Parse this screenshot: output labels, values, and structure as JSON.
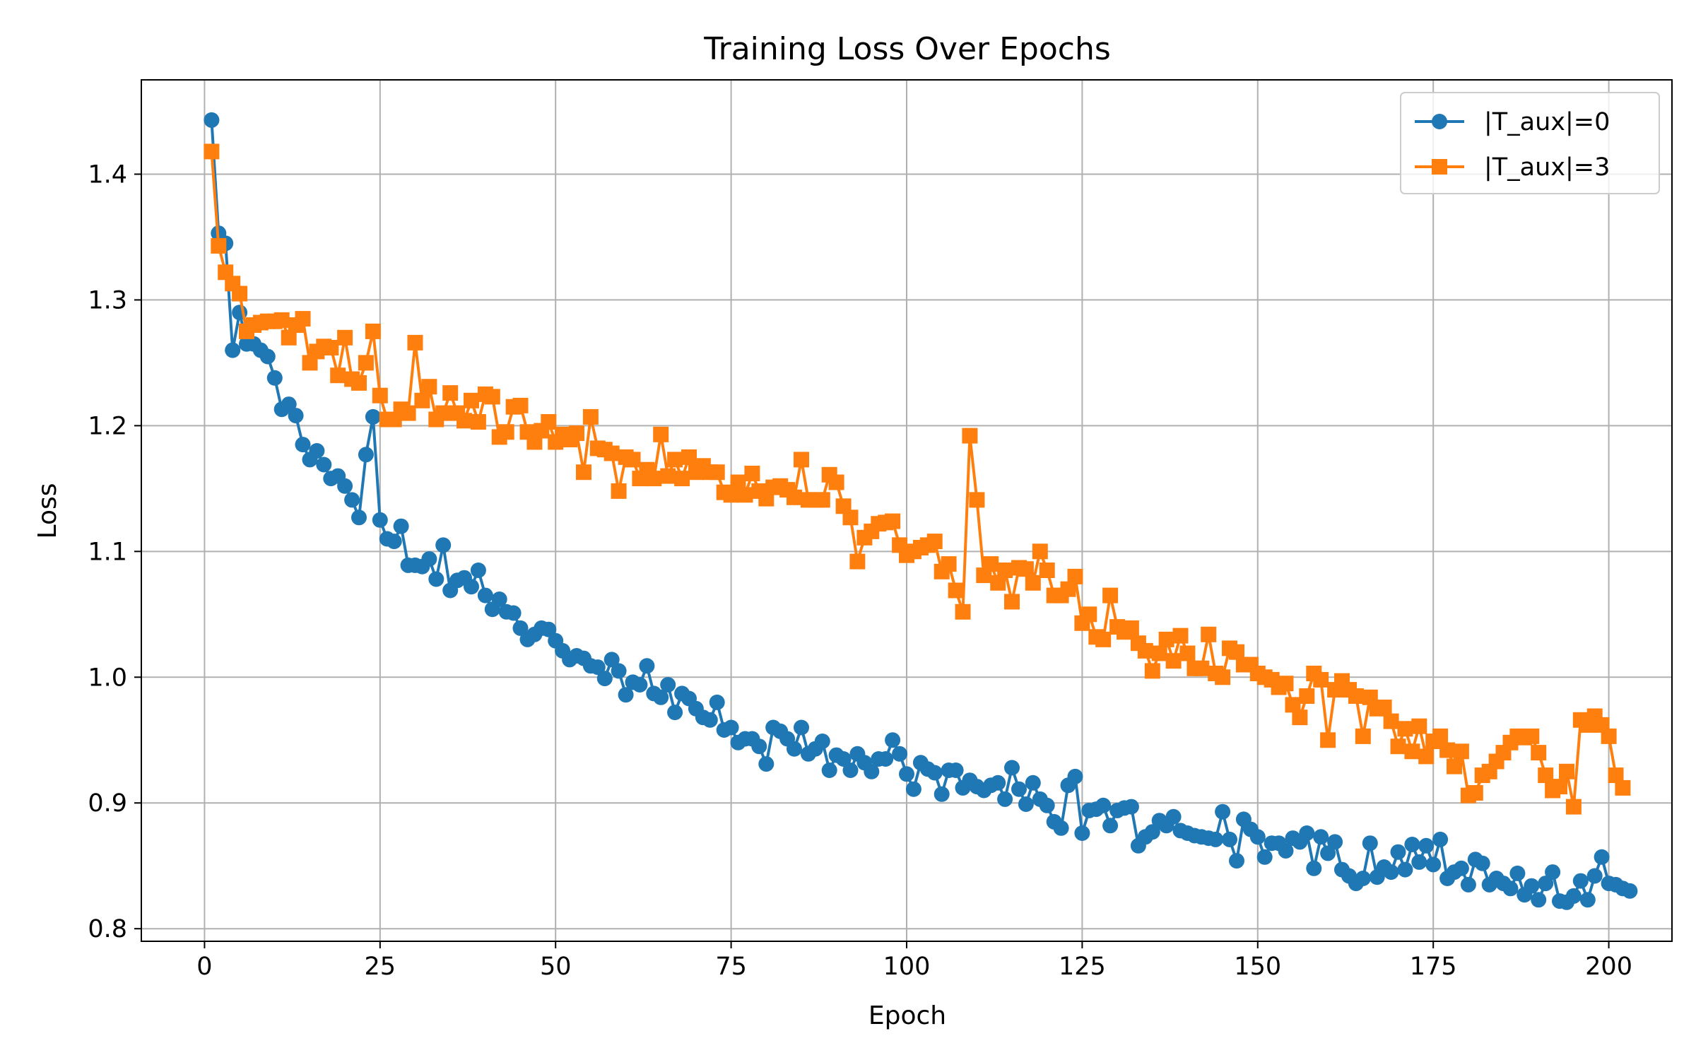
{
  "chart_data": {
    "type": "line",
    "title": "Training Loss Over Epochs",
    "xlabel": "Epoch",
    "ylabel": "Loss",
    "xlim": [
      -9,
      209
    ],
    "ylim": [
      0.79,
      1.475
    ],
    "xticks": [
      0,
      25,
      50,
      75,
      100,
      125,
      150,
      175,
      200
    ],
    "yticks": [
      0.8,
      0.9,
      1.0,
      1.1,
      1.2,
      1.3,
      1.4
    ],
    "ytick_labels": [
      "0.8",
      "0.9",
      "1.0",
      "1.1",
      "1.2",
      "1.3",
      "1.4"
    ],
    "grid": true,
    "legend_position": "top-right",
    "series": [
      {
        "name": "|T_aux|=0",
        "color": "#1f77b4",
        "marker": "circle",
        "x_start": 1,
        "values": [
          1.443,
          1.353,
          1.345,
          1.26,
          1.29,
          1.265,
          1.265,
          1.26,
          1.255,
          1.238,
          1.213,
          1.217,
          1.208,
          1.185,
          1.173,
          1.18,
          1.169,
          1.158,
          1.16,
          1.152,
          1.141,
          1.127,
          1.177,
          1.207,
          1.125,
          1.11,
          1.108,
          1.12,
          1.089,
          1.089,
          1.088,
          1.094,
          1.078,
          1.105,
          1.069,
          1.077,
          1.079,
          1.072,
          1.085,
          1.065,
          1.054,
          1.062,
          1.052,
          1.051,
          1.039,
          1.03,
          1.034,
          1.039,
          1.038,
          1.029,
          1.021,
          1.014,
          1.017,
          1.015,
          1.009,
          1.008,
          0.999,
          1.014,
          1.005,
          0.986,
          0.996,
          0.994,
          1.009,
          0.987,
          0.984,
          0.994,
          0.972,
          0.987,
          0.983,
          0.975,
          0.968,
          0.966,
          0.98,
          0.958,
          0.96,
          0.948,
          0.951,
          0.951,
          0.945,
          0.931,
          0.96,
          0.957,
          0.951,
          0.943,
          0.96,
          0.939,
          0.943,
          0.949,
          0.926,
          0.938,
          0.935,
          0.926,
          0.939,
          0.932,
          0.925,
          0.935,
          0.935,
          0.95,
          0.939,
          0.923,
          0.911,
          0.932,
          0.927,
          0.924,
          0.907,
          0.926,
          0.926,
          0.912,
          0.918,
          0.913,
          0.91,
          0.914,
          0.916,
          0.903,
          0.928,
          0.911,
          0.899,
          0.916,
          0.903,
          0.898,
          0.885,
          0.88,
          0.914,
          0.921,
          0.876,
          0.894,
          0.895,
          0.898,
          0.882,
          0.894,
          0.896,
          0.897,
          0.866,
          0.873,
          0.877,
          0.886,
          0.882,
          0.889,
          0.878,
          0.876,
          0.874,
          0.873,
          0.872,
          0.871,
          0.893,
          0.871,
          0.854,
          0.887,
          0.879,
          0.873,
          0.857,
          0.868,
          0.868,
          0.862,
          0.872,
          0.869,
          0.876,
          0.848,
          0.873,
          0.86,
          0.869,
          0.847,
          0.842,
          0.836,
          0.84,
          0.868,
          0.841,
          0.849,
          0.845,
          0.861,
          0.847,
          0.867,
          0.853,
          0.866,
          0.851,
          0.871,
          0.84,
          0.845,
          0.848,
          0.835,
          0.855,
          0.852,
          0.835,
          0.84,
          0.836,
          0.832,
          0.844,
          0.827,
          0.834,
          0.823,
          0.836,
          0.845,
          0.822,
          0.821,
          0.826,
          0.838,
          0.823,
          0.842,
          0.857,
          0.836,
          0.835,
          0.832,
          0.83
        ]
      },
      {
        "name": "|T_aux|=3",
        "color": "#ff7f0e",
        "marker": "square",
        "x_start": 1,
        "values": [
          1.418,
          1.343,
          1.322,
          1.313,
          1.305,
          1.275,
          1.28,
          1.282,
          1.283,
          1.283,
          1.284,
          1.27,
          1.28,
          1.285,
          1.25,
          1.259,
          1.263,
          1.262,
          1.24,
          1.27,
          1.237,
          1.234,
          1.25,
          1.275,
          1.224,
          1.205,
          1.205,
          1.213,
          1.21,
          1.266,
          1.22,
          1.231,
          1.205,
          1.21,
          1.226,
          1.21,
          1.204,
          1.22,
          1.203,
          1.225,
          1.223,
          1.191,
          1.195,
          1.215,
          1.216,
          1.195,
          1.187,
          1.196,
          1.203,
          1.187,
          1.193,
          1.189,
          1.194,
          1.163,
          1.207,
          1.182,
          1.181,
          1.178,
          1.148,
          1.175,
          1.173,
          1.158,
          1.165,
          1.158,
          1.193,
          1.16,
          1.173,
          1.158,
          1.175,
          1.163,
          1.168,
          1.163,
          1.163,
          1.147,
          1.145,
          1.155,
          1.145,
          1.162,
          1.148,
          1.142,
          1.151,
          1.152,
          1.149,
          1.143,
          1.173,
          1.141,
          1.141,
          1.141,
          1.161,
          1.155,
          1.136,
          1.127,
          1.092,
          1.111,
          1.116,
          1.122,
          1.123,
          1.124,
          1.105,
          1.097,
          1.1,
          1.103,
          1.105,
          1.108,
          1.084,
          1.09,
          1.069,
          1.052,
          1.192,
          1.141,
          1.081,
          1.09,
          1.075,
          1.085,
          1.06,
          1.087,
          1.086,
          1.075,
          1.1,
          1.085,
          1.065,
          1.065,
          1.07,
          1.08,
          1.043,
          1.05,
          1.032,
          1.03,
          1.065,
          1.04,
          1.036,
          1.039,
          1.027,
          1.021,
          1.005,
          1.019,
          1.03,
          1.013,
          1.033,
          1.019,
          1.007,
          1.007,
          1.034,
          1.003,
          1.0,
          1.023,
          1.02,
          1.01,
          1.01,
          1.003,
          1.0,
          0.998,
          0.992,
          0.995,
          0.978,
          0.968,
          0.985,
          1.003,
          0.998,
          0.95,
          0.99,
          0.997,
          0.99,
          0.985,
          0.953,
          0.984,
          0.975,
          0.976,
          0.965,
          0.945,
          0.959,
          0.941,
          0.961,
          0.937,
          0.949,
          0.953,
          0.942,
          0.929,
          0.941,
          0.906,
          0.908,
          0.922,
          0.925,
          0.933,
          0.94,
          0.948,
          0.953,
          0.952,
          0.953,
          0.94,
          0.922,
          0.91,
          0.913,
          0.925,
          0.897,
          0.966,
          0.962,
          0.969,
          0.962,
          0.953,
          0.922,
          0.912
        ]
      }
    ]
  }
}
